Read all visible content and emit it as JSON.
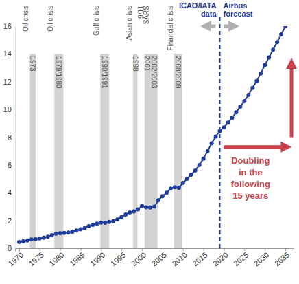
{
  "chart_data": {
    "type": "line",
    "x": [
      1970,
      1971,
      1972,
      1973,
      1974,
      1975,
      1976,
      1977,
      1978,
      1979,
      1980,
      1981,
      1982,
      1983,
      1984,
      1985,
      1986,
      1987,
      1988,
      1989,
      1990,
      1991,
      1992,
      1993,
      1994,
      1995,
      1996,
      1997,
      1998,
      1999,
      2000,
      2001,
      2002,
      2003,
      2004,
      2005,
      2006,
      2007,
      2008,
      2009,
      2010,
      2011,
      2012,
      2013,
      2014,
      2015,
      2016,
      2017,
      2018,
      2019,
      2020,
      2021,
      2022,
      2023,
      2024,
      2025,
      2026,
      2027,
      2028,
      2029,
      2030,
      2031,
      2032,
      2033,
      2034,
      2035
    ],
    "values": [
      0.45,
      0.5,
      0.56,
      0.63,
      0.66,
      0.7,
      0.76,
      0.83,
      0.94,
      1.05,
      1.08,
      1.1,
      1.13,
      1.19,
      1.27,
      1.36,
      1.46,
      1.58,
      1.68,
      1.77,
      1.85,
      1.83,
      1.9,
      1.95,
      2.08,
      2.24,
      2.43,
      2.58,
      2.65,
      2.8,
      3.05,
      2.95,
      2.93,
      3.0,
      3.45,
      3.75,
      4.0,
      4.3,
      4.4,
      4.35,
      4.7,
      5.0,
      5.3,
      5.6,
      6.0,
      6.45,
      7.0,
      7.55,
      8.05,
      8.45,
      8.7,
      9.05,
      9.4,
      9.8,
      10.2,
      10.6,
      11.05,
      11.55,
      12.05,
      12.6,
      13.2,
      13.75,
      14.3,
      14.85,
      15.4,
      16.0
    ],
    "color": "#1f3c99",
    "marker": "circle",
    "xlim": [
      1969,
      2037
    ],
    "xticks": [
      1970,
      1975,
      1980,
      1985,
      1990,
      1995,
      2000,
      2005,
      2010,
      2015,
      2020,
      2025,
      2030,
      2035
    ],
    "ylim": [
      0,
      16
    ],
    "yticks": [
      0,
      2,
      4,
      6,
      8,
      10,
      12,
      14,
      16
    ],
    "grid": false,
    "crises": {
      "top": 14,
      "items": [
        {
          "label": "Oil crisis",
          "years": "1973",
          "start": 1972.6,
          "end": 1974.0
        },
        {
          "label": "Oil crisis",
          "years": "1979/1980",
          "start": 1978.6,
          "end": 1980.8
        },
        {
          "label": "Gulf crisis",
          "years": "1990/1991",
          "start": 1989.8,
          "end": 1992.0
        },
        {
          "label": "Asian crisis",
          "years": "1998",
          "start": 1997.8,
          "end": 1998.9
        },
        {
          "label": "9/11",
          "years": "2001",
          "start": 2000.6,
          "end": 2002.0
        },
        {
          "label": "SARS",
          "years": "2002/2003",
          "start": 2002.0,
          "end": 2003.8
        },
        {
          "label": "Financial crisis",
          "years": "2008/2009",
          "start": 2007.8,
          "end": 2009.8
        }
      ]
    },
    "divider": {
      "x": 2019,
      "left_label": [
        "ICAO/IATA",
        "data"
      ],
      "right_label": [
        "Airbus",
        "forecast"
      ]
    },
    "annotation": {
      "lines": [
        "Doubling",
        "in the",
        "following",
        "15 years"
      ],
      "x": 2026.5,
      "y": 6.1,
      "arrows": [
        {
          "x": [
            2020,
            2035.5
          ],
          "y": [
            7.3,
            7.3
          ]
        },
        {
          "x": [
            2036.5,
            2036.5
          ],
          "y": [
            8.0,
            13.4
          ]
        }
      ]
    }
  }
}
